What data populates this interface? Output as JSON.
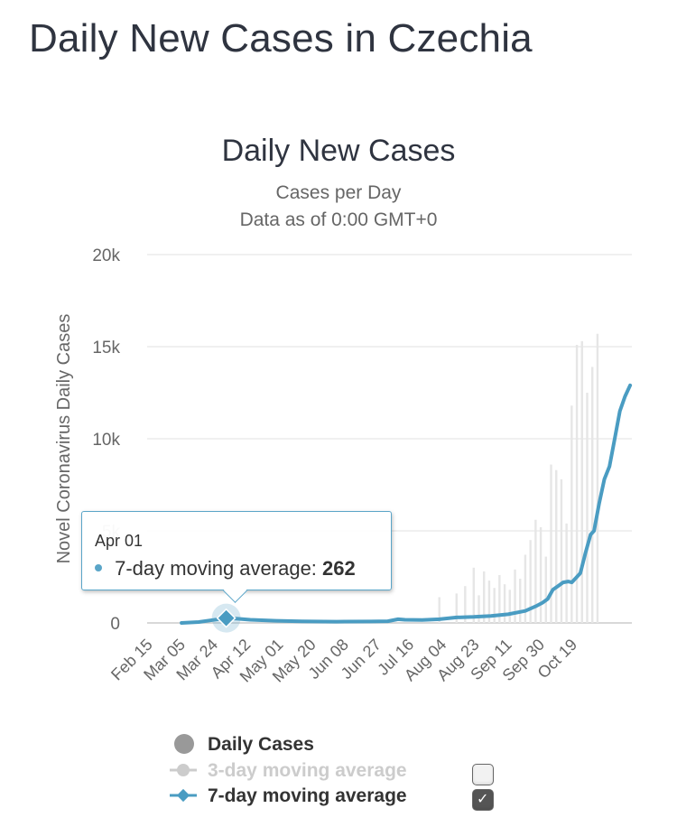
{
  "page": {
    "title": "Daily New Cases in Czechia"
  },
  "chart_data": {
    "type": "bar",
    "title": "Daily New Cases",
    "subtitle_1": "Cases per Day",
    "subtitle_2": "Data as of 0:00 GMT+0",
    "ylabel": "Novel Coronavirus Daily Cases",
    "ylim": [
      0,
      20000
    ],
    "y_ticks": [
      {
        "value": 0,
        "label": "0"
      },
      {
        "value": 5000,
        "label": "5k"
      },
      {
        "value": 10000,
        "label": "10k"
      },
      {
        "value": 15000,
        "label": "15k"
      },
      {
        "value": 20000,
        "label": "20k"
      }
    ],
    "x_ticks": [
      "Feb 15",
      "Mar 05",
      "Mar 24",
      "Apr 12",
      "May 01",
      "May 20",
      "Jun 08",
      "Jun 27",
      "Jul 16",
      "Aug 04",
      "Aug 23",
      "Sep 11",
      "Sep 30",
      "Oct 19"
    ],
    "series": [
      {
        "name": "Daily Cases",
        "type": "bar",
        "color": "#e6e6e6",
        "points": [
          [
            170,
            1400
          ],
          [
            180,
            1600
          ],
          [
            185,
            2000
          ],
          [
            190,
            3000
          ],
          [
            193,
            1500
          ],
          [
            196,
            2800
          ],
          [
            199,
            2300
          ],
          [
            202,
            1900
          ],
          [
            205,
            2600
          ],
          [
            208,
            2100
          ],
          [
            211,
            1800
          ],
          [
            214,
            2900
          ],
          [
            217,
            2400
          ],
          [
            220,
            3700
          ],
          [
            223,
            4500
          ],
          [
            226,
            5600
          ],
          [
            229,
            5200
          ],
          [
            232,
            3600
          ],
          [
            235,
            8600
          ],
          [
            238,
            8300
          ],
          [
            241,
            7800
          ],
          [
            244,
            5400
          ],
          [
            247,
            11800
          ],
          [
            250,
            15100
          ],
          [
            253,
            15300
          ],
          [
            256,
            12500
          ],
          [
            259,
            13900
          ],
          [
            262,
            15700
          ]
        ]
      },
      {
        "name": "3-day moving average",
        "type": "line",
        "visible": false,
        "color": "#cccccc"
      },
      {
        "name": "7-day moving average",
        "type": "line",
        "color": "#5aa5c8",
        "points": [
          [
            20,
            0
          ],
          [
            30,
            50
          ],
          [
            40,
            180
          ],
          [
            46,
            262
          ],
          [
            52,
            230
          ],
          [
            60,
            170
          ],
          [
            75,
            120
          ],
          [
            90,
            90
          ],
          [
            110,
            70
          ],
          [
            130,
            80
          ],
          [
            140,
            95
          ],
          [
            146,
            200
          ],
          [
            150,
            170
          ],
          [
            160,
            160
          ],
          [
            170,
            200
          ],
          [
            180,
            300
          ],
          [
            190,
            330
          ],
          [
            200,
            380
          ],
          [
            210,
            470
          ],
          [
            220,
            650
          ],
          [
            226,
            900
          ],
          [
            230,
            1100
          ],
          [
            233,
            1300
          ],
          [
            236,
            1800
          ],
          [
            239,
            2000
          ],
          [
            242,
            2200
          ],
          [
            245,
            2250
          ],
          [
            247,
            2200
          ],
          [
            250,
            2500
          ],
          [
            252,
            2700
          ],
          [
            255,
            3800
          ],
          [
            258,
            4800
          ],
          [
            260,
            5000
          ],
          [
            263,
            6500
          ],
          [
            266,
            7800
          ],
          [
            269,
            8500
          ],
          [
            272,
            10000
          ],
          [
            275,
            11500
          ],
          [
            278,
            12300
          ],
          [
            281,
            12900
          ]
        ]
      }
    ],
    "highlight": {
      "day": 46,
      "value": 262
    },
    "tooltip": {
      "date": "Apr 01",
      "series_label": "7-day moving average:",
      "value": "262"
    }
  },
  "legend": {
    "items": [
      {
        "label": "Daily Cases",
        "color": "#999999",
        "visible": true
      },
      {
        "label": "3-day moving average",
        "color": "#cccccc",
        "visible": false
      },
      {
        "label": "7-day moving average",
        "color": "#5aa5c8",
        "visible": true
      }
    ]
  }
}
